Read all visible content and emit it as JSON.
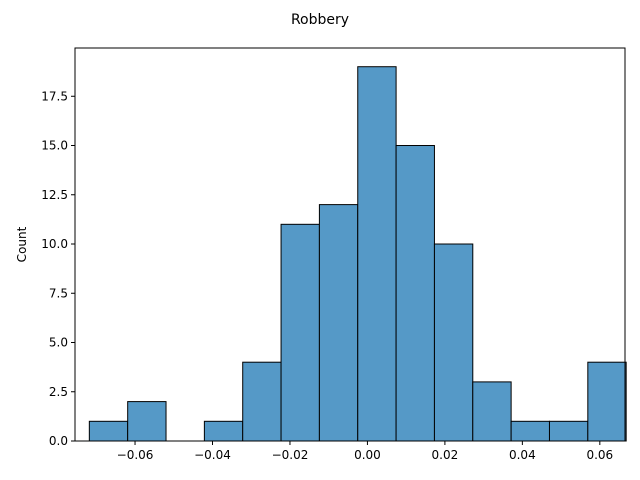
{
  "chart_data": {
    "type": "bar",
    "title": "Robbery",
    "xlabel": "",
    "ylabel": "Count",
    "bin_edges": [
      -0.0718,
      -0.0619,
      -0.052,
      -0.0421,
      -0.0322,
      -0.0223,
      -0.0124,
      -0.0025,
      0.0074,
      0.0173,
      0.0272,
      0.0371,
      0.047,
      0.0569,
      0.0668
    ],
    "bins": [
      {
        "x0": -0.0718,
        "x1": -0.0619,
        "count": 1
      },
      {
        "x0": -0.0619,
        "x1": -0.052,
        "count": 2
      },
      {
        "x0": -0.052,
        "x1": -0.0421,
        "count": 0
      },
      {
        "x0": -0.0421,
        "x1": -0.0322,
        "count": 1
      },
      {
        "x0": -0.0322,
        "x1": -0.0223,
        "count": 4
      },
      {
        "x0": -0.0223,
        "x1": -0.0124,
        "count": 11
      },
      {
        "x0": -0.0124,
        "x1": -0.0025,
        "count": 12
      },
      {
        "x0": -0.0025,
        "x1": 0.0074,
        "count": 19
      },
      {
        "x0": 0.0074,
        "x1": 0.0173,
        "count": 15
      },
      {
        "x0": 0.0173,
        "x1": 0.0272,
        "count": 10
      },
      {
        "x0": 0.0272,
        "x1": 0.0371,
        "count": 3
      },
      {
        "x0": 0.0371,
        "x1": 0.047,
        "count": 1
      },
      {
        "x0": 0.047,
        "x1": 0.0569,
        "count": 1
      },
      {
        "x0": 0.0569,
        "x1": 0.0668,
        "count": 4
      }
    ],
    "xlim": [
      -0.0755,
      0.0665
    ],
    "ylim": [
      0,
      19.95
    ],
    "x_ticks": [
      {
        "value": -0.06,
        "label": "−0.06"
      },
      {
        "value": -0.04,
        "label": "−0.04"
      },
      {
        "value": -0.02,
        "label": "−0.02"
      },
      {
        "value": 0.0,
        "label": "0.00"
      },
      {
        "value": 0.02,
        "label": "0.02"
      },
      {
        "value": 0.04,
        "label": "0.04"
      },
      {
        "value": 0.06,
        "label": "0.06"
      }
    ],
    "y_ticks": [
      {
        "value": 0,
        "label": "0.0"
      },
      {
        "value": 2.5,
        "label": "2.5"
      },
      {
        "value": 5,
        "label": "5.0"
      },
      {
        "value": 7.5,
        "label": "7.5"
      },
      {
        "value": 10,
        "label": "10.0"
      },
      {
        "value": 12.5,
        "label": "12.5"
      },
      {
        "value": 15,
        "label": "15.0"
      },
      {
        "value": 17.5,
        "label": "17.5"
      }
    ],
    "grid": false,
    "colors": {
      "bar_fill": "#5599c7",
      "bar_edge": "#000000"
    }
  }
}
